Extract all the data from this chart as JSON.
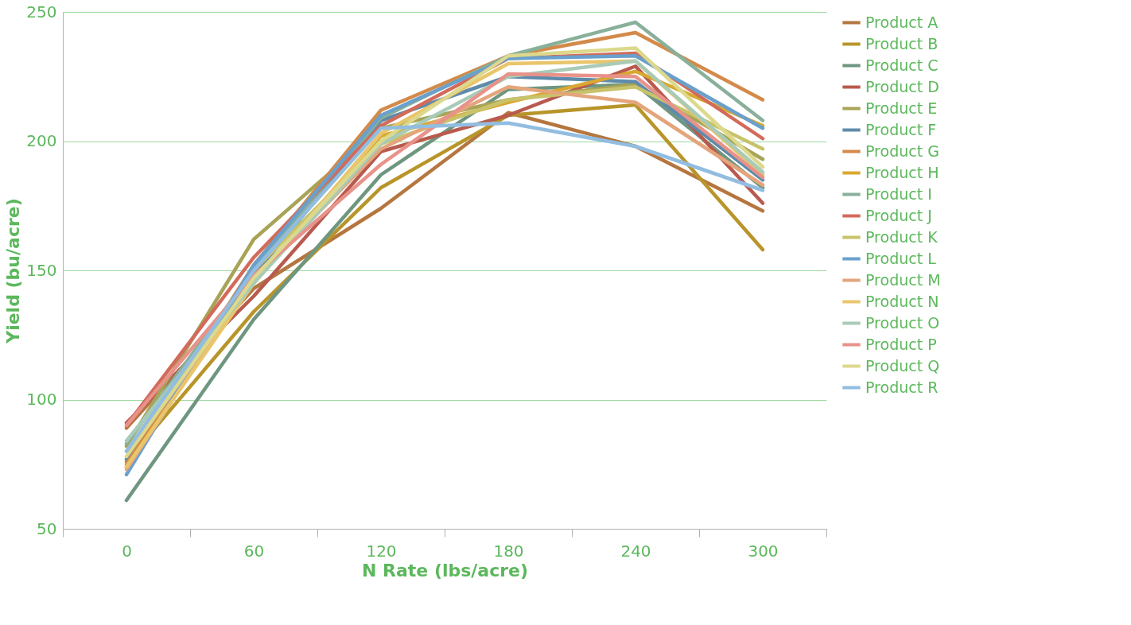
{
  "chart_data": {
    "type": "line",
    "xlabel": "N Rate (lbs/acre)",
    "ylabel": "Yield (bu/acre)",
    "categories": [
      "0",
      "60",
      "120",
      "180",
      "240",
      "300"
    ],
    "ylim": [
      50,
      250
    ],
    "yticks": [
      50,
      100,
      150,
      200,
      250
    ],
    "grid": "y",
    "legend": "right",
    "marker": "none",
    "line_style": "solid",
    "series": [
      {
        "name": "Product A",
        "color": "#b5763f",
        "values": [
          89,
          143,
          174,
          211,
          198,
          173
        ]
      },
      {
        "name": "Product B",
        "color": "#b8952a",
        "values": [
          76,
          134,
          182,
          210,
          214,
          158
        ]
      },
      {
        "name": "Product C",
        "color": "#6f9680",
        "values": [
          61,
          131,
          187,
          220,
          222,
          182
        ]
      },
      {
        "name": "Product D",
        "color": "#b95a4f",
        "values": [
          91,
          140,
          196,
          210,
          229,
          176
        ]
      },
      {
        "name": "Product E",
        "color": "#a8a457",
        "values": [
          82,
          162,
          205,
          216,
          222,
          193
        ]
      },
      {
        "name": "Product F",
        "color": "#5e8bab",
        "values": [
          77,
          148,
          208,
          225,
          223,
          185
        ]
      },
      {
        "name": "Product G",
        "color": "#d38a4a",
        "values": [
          75,
          152,
          212,
          233,
          242,
          216
        ]
      },
      {
        "name": "Product H",
        "color": "#d9a832",
        "values": [
          74,
          146,
          202,
          215,
          227,
          206
        ]
      },
      {
        "name": "Product I",
        "color": "#88b09a",
        "values": [
          83,
          150,
          209,
          233,
          246,
          208
        ]
      },
      {
        "name": "Product J",
        "color": "#d26b5a",
        "values": [
          90,
          155,
          206,
          232,
          234,
          201
        ]
      },
      {
        "name": "Product K",
        "color": "#c8c36a",
        "values": [
          80,
          150,
          199,
          216,
          221,
          197
        ]
      },
      {
        "name": "Product L",
        "color": "#6aa0cc",
        "values": [
          71,
          152,
          210,
          232,
          233,
          205
        ]
      },
      {
        "name": "Product M",
        "color": "#e4a57c",
        "values": [
          73,
          147,
          197,
          221,
          215,
          183
        ]
      },
      {
        "name": "Product N",
        "color": "#e9c56b",
        "values": [
          74,
          145,
          203,
          230,
          231,
          187
        ]
      },
      {
        "name": "Product O",
        "color": "#a8cbb7",
        "values": [
          84,
          145,
          199,
          225,
          231,
          188
        ]
      },
      {
        "name": "Product P",
        "color": "#e8928a",
        "values": [
          90,
          148,
          191,
          226,
          225,
          186
        ]
      },
      {
        "name": "Product Q",
        "color": "#ddd98c",
        "values": [
          78,
          147,
          200,
          233,
          236,
          190
        ]
      },
      {
        "name": "Product R",
        "color": "#92bde0",
        "values": [
          80,
          150,
          205,
          207,
          198,
          181
        ]
      }
    ]
  }
}
